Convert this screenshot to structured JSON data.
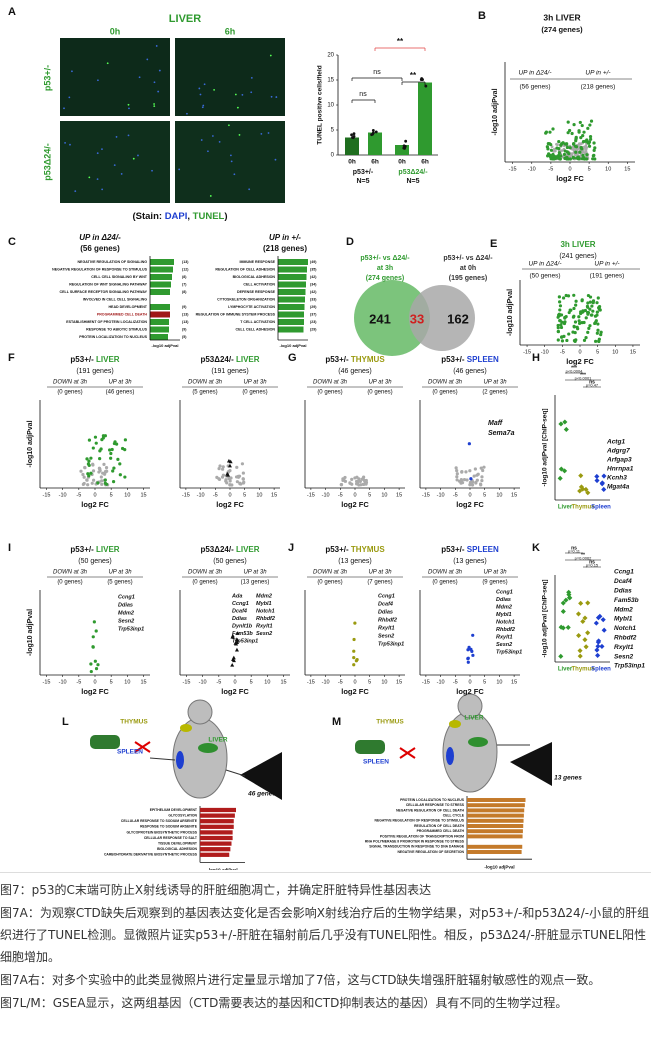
{
  "A": {
    "letter": "A",
    "title": "LIVER",
    "times": [
      "0h",
      "6h"
    ],
    "rows": [
      "p53+/-",
      "p53Δ24/-"
    ],
    "stain": [
      "(Stain: ",
      "DAPI",
      ", ",
      "TUNEL",
      ")"
    ],
    "bar_chart": {
      "ylabel": "TUNEL positive cells/field",
      "ylim": [
        0,
        20
      ],
      "yticks": [
        0,
        5,
        10,
        15,
        20
      ],
      "values": [
        3.5,
        4.5,
        2,
        14.5
      ],
      "color": "#2f9a2f",
      "xlabels": [
        "0h",
        "6h",
        "0h",
        "6h"
      ],
      "groups": [
        "p53+/-",
        "N=5",
        "p53Δ24/-",
        "N=5"
      ],
      "sig": [
        "ns",
        "ns",
        "**",
        "**"
      ]
    }
  },
  "B": {
    "letter": "B",
    "title": "3h LIVER",
    "subtitle": "(274 genes)",
    "left": "UP in Δ24/-",
    "left_n": "(56 genes)",
    "right": "UP in +/-",
    "right_n": "(218 genes)",
    "ylabel": "-log10 adjPval",
    "xlabel": "log2 FC",
    "xlim": [
      -17,
      17
    ],
    "xticks": [
      -15,
      -10,
      -5,
      0,
      5,
      10,
      15
    ]
  },
  "C": {
    "letter": "C",
    "xlabel": "-log10 adjPval",
    "xlim": [
      0,
      3
    ],
    "lists": [
      {
        "title": "UP in Δ24/-",
        "subtitle": "(56 genes)",
        "color": "#2f9a2f",
        "highlight_color": "#a01818",
        "terms": [
          "NEGATIVE REGULATION OF SIGNALING",
          "NEGATIVE REGULATION OF RESPONSE TO STIMULUS",
          "CELL CELL SIGNALING BY WNT",
          "REGULATION OF WNT SIGNALING PATHWAY",
          "CELL SURFACE RECEPTOR SIGNALING PATHWAY",
          "INVOLVED IN CELL CELL SIGNALING",
          "HEAD DEVELOPMENT",
          "PROGRAMMED CELL DEATH",
          "ESTABLISHMENT OF PROTEIN LOCALIZATION",
          "RESPONSE TO ABIOTIC STIMULUS",
          "PROTEIN LOCALIZATION TO NUCLEUS"
        ],
        "counts": [
          "(13)",
          "(12)",
          "(8)",
          "(7)",
          "(8)",
          null,
          "(9)",
          "(13)",
          "(13)",
          "(9)",
          "(5)"
        ],
        "values": [
          2.4,
          2.3,
          2.2,
          2.1,
          2.0,
          null,
          2.0,
          2.0,
          1.9,
          1.9,
          1.8
        ],
        "highlight": 7
      },
      {
        "title": "UP in +/-",
        "subtitle": "(218 genes)",
        "color": "#2f9a2f",
        "terms": [
          "IMMUNE RESPONSE",
          "REGULATION OF CELL ADHESION",
          "BIOLOGICAL ADHESION",
          "CELL ACTIVATION",
          "DEFENSE RESPONSE",
          "CYTOSKELETON ORGANIZATION",
          "LYMPHOCYTE ACTIVATION",
          "REGULATION OF IMMUNE SYSTEM PROCESS",
          "T CELL ACTIVATION",
          "CELL CELL ADHESION"
        ],
        "counts": [
          "(49)",
          "(35)",
          "(42)",
          "(34)",
          "(42)",
          "(33)",
          "(29)",
          "(37)",
          "(23)",
          "(29)"
        ],
        "values": [
          3.0,
          2.9,
          2.85,
          2.8,
          2.75,
          2.7,
          2.65,
          2.6,
          2.6,
          2.55
        ]
      }
    ]
  },
  "D": {
    "letter": "D",
    "left": [
      "p53+/- vs Δ24/-",
      "at 3h",
      "(274 genes)"
    ],
    "right": [
      "p53+/- vs Δ24/-",
      "at 0h",
      "(195 genes)"
    ],
    "counts": [
      "241",
      "33",
      "162"
    ]
  },
  "E": {
    "letter": "E",
    "title": "3h LIVER",
    "subtitle": "(241 genes)",
    "left": "UP in Δ24/-",
    "left_n": "(50 genes)",
    "right": "UP in +/-",
    "right_n": "(191 genes)",
    "ylabel": "-log10 adjPval",
    "xlabel": "log2 FC",
    "xlim": [
      -17,
      17
    ],
    "xticks": [
      -15,
      -10,
      -5,
      0,
      5,
      10,
      15
    ]
  },
  "F": {
    "letter": "F",
    "ylabel": "-log10 adjPval",
    "xlabel": "log2 FC",
    "xlim": [
      -17,
      17
    ],
    "xticks": [
      -15,
      -10,
      -5,
      0,
      5,
      10,
      15
    ],
    "plots": [
      {
        "title": [
          "p53+/- ",
          "LIVER"
        ],
        "subtitle": "(191 genes)",
        "down": "DOWN at 3h",
        "up": "UP at 3h",
        "down_n": "(0 genes)",
        "up_n": "(46 genes)"
      },
      {
        "title": [
          "p53Δ24/- ",
          "LIVER"
        ],
        "subtitle": "(191 genes)",
        "down": "DOWN at 3h",
        "up": "UP at 3h",
        "down_n": "(5 genes)",
        "up_n": "(0 genes)"
      }
    ]
  },
  "G": {
    "letter": "G",
    "xlabel": "log2 FC",
    "xlim": [
      -17,
      17
    ],
    "xticks": [
      -15,
      -10,
      -5,
      0,
      5,
      10,
      15
    ],
    "plots": [
      {
        "title": [
          "p53+/- ",
          "THYMUS"
        ],
        "subtitle": "(46 genes)",
        "down": "DOWN at 3h",
        "up": "UP at 3h",
        "down_n": "(0 genes)",
        "up_n": "(0 genes)"
      },
      {
        "title": [
          "p53+/- ",
          "SPLEEN"
        ],
        "subtitle": "(46 genes)",
        "down": "DOWN at 3h",
        "up": "UP at 3h",
        "down_n": "(0 genes)",
        "up_n": "(2 genes)",
        "genes": [
          "Maff",
          "Sema7a"
        ]
      }
    ]
  },
  "H": {
    "letter": "H",
    "ylabel": "-log10 adjPval [ChIP-seq]",
    "xlabels": [
      "Liver",
      "Thymus",
      "Spleen"
    ],
    "sig": [
      "***",
      "p<0.0004",
      "***",
      "p<0.0001",
      "ns",
      "p=0.47"
    ],
    "genes": [
      "Actg1",
      "Adgrg7",
      "Arfgap3",
      "Hnrnpa1",
      "Kcnh3",
      "Mgat4a"
    ]
  },
  "I": {
    "letter": "I",
    "ylabel": "-log10 adjPval",
    "xlabel": "log2 FC",
    "xlim": [
      -17,
      17
    ],
    "xticks": [
      -15,
      -10,
      -5,
      0,
      5,
      10,
      15
    ],
    "plots": [
      {
        "title": [
          "p53+/- ",
          "LIVER"
        ],
        "subtitle": "(50 genes)",
        "down": "DOWN at 3h",
        "up": "UP at 3h",
        "down_n": "(0 genes)",
        "up_n": "(5 genes)",
        "genes": [
          "Ccng1",
          "Ddias",
          "Mdm2",
          "Sesn2",
          "Trp53inp1"
        ]
      },
      {
        "title": [
          "p53Δ24/- ",
          "LIVER"
        ],
        "subtitle": "(50 genes)",
        "down": "DOWN at 3h",
        "up": "UP at 3h",
        "down_n": "(0 genes)",
        "up_n": "(13 genes)",
        "genes": [
          "Ada",
          "Ccng1",
          "Dcaf4",
          "Ddias",
          "Dynlt1b",
          "Fam53b",
          "Trp53inp1",
          "Mdm2",
          "Mybl1",
          "Notch1",
          "Rhbdf2",
          "Rxylt1",
          "Sesn2"
        ]
      }
    ]
  },
  "J": {
    "letter": "J",
    "xlabel": "log2 FC",
    "xlim": [
      -17,
      17
    ],
    "xticks": [
      -15,
      -10,
      -5,
      0,
      5,
      10,
      15
    ],
    "plots": [
      {
        "title": [
          "p53+/- ",
          "THYMUS"
        ],
        "subtitle": "(13 genes)",
        "down": "DOWN at 3h",
        "up": "UP at 3h",
        "down_n": "(0 genes)",
        "up_n": "(7 genes)",
        "genes": [
          "Ccng1",
          "Dcaf4",
          "Ddias",
          "Rhbdf2",
          "Rxylt1",
          "Sesn2",
          "Trp53inp1"
        ]
      },
      {
        "title": [
          "p53+/- ",
          "SPLEEN"
        ],
        "subtitle": "(13 genes)",
        "down": "DOWN at 3h",
        "up": "UP at 3h",
        "down_n": "(0 genes)",
        "up_n": "(9 genes)",
        "genes": [
          "Ccng1",
          "Ddias",
          "Mdm2",
          "Mybl1",
          "Notch1",
          "Rhbdf2",
          "Rxylt1",
          "Sesn2",
          "Trp53inp1"
        ]
      }
    ]
  },
  "K": {
    "letter": "K",
    "ylabel": "-log10 adjPval [ChIP-seq]",
    "xlabels": [
      "Liver",
      "Thymus",
      "Spleen"
    ],
    "sig": [
      "ns",
      "p=0.11",
      "**",
      "p=0.0062",
      "ns",
      "p=0.15"
    ],
    "genes": [
      "Ccng1",
      "Dcaf4",
      "Ddias",
      "Fam53b",
      "Mdm2",
      "Mybl1",
      "Notch1",
      "Rhbdf2",
      "Rxylt1",
      "Sesn2",
      "Trp53inp1"
    ]
  },
  "L": {
    "letter": "L",
    "labels": [
      "THYMUS",
      "LIVER",
      "SPLEEN"
    ],
    "genes": "46 genes",
    "xlabel": "-log10 adjPval",
    "xlim": [
      0,
      2
    ],
    "color": "#b01c1c",
    "terms": [
      "EPITHELIUM DEVELOPMENT",
      "GLYCOSYLATION",
      "CELLULAR RESPONSE TO SODIUM ARSENITE",
      "RESPONSE TO SODIUM ARSENITE",
      "GLYCOPROTEIN BIOSYNTHETIC PROCESS",
      "CELLULAR RESPONSE TO SALT",
      "TISSUE DEVELOPMENT",
      "BIOLOGICAL ADHESION",
      "CARBOHYDRATE DERIVATIVE BIOSYNTHETIC PROCESS"
    ],
    "values": [
      1.6,
      1.55,
      1.5,
      1.5,
      1.45,
      1.45,
      1.4,
      1.35,
      1.3
    ]
  },
  "M": {
    "letter": "M",
    "labels": [
      "THYMUS",
      "LIVER",
      "SPLEEN"
    ],
    "genes": "13 genes",
    "xlabel": "-log10 adjPval",
    "xlim": [
      0,
      2
    ],
    "color": "#c47a2a",
    "terms": [
      "PROTEIN LOCALIZATION TO NUCLEUS",
      "CELLULAR RESPONSE TO STRESS",
      "NEGATIVE REGULATION OF CELL DEATH",
      "CELL CYCLE",
      "NEGATIVE REGULATION OF RESPONSE TO STIMULUS",
      "REGULATION OF CELL DEATH",
      "PROGRAMMED CELL DEATH",
      "POSITIVE REGULATION OF TRANSCRIPTION FROM",
      "RNA POLYMERASE II PROMOTER IN RESPONSE TO STRESS",
      "SIGNAL TRANSDUCTION IN RESPONSE TO DNA DAMAGE",
      "NEGATIVE REGULATION OF SECRETION"
    ],
    "values": [
      1.8,
      1.78,
      1.76,
      1.75,
      1.74,
      1.73,
      1.72,
      1.71,
      null,
      1.7,
      1.68
    ]
  },
  "caption": [
    "图7：p53的C末端可防止X射线诱导的肝脏细胞凋亡，并确定肝脏特异性基因表达",
    "图7A：为观察CTD缺失后观察到的基因表达变化是否会影响X射线治疗后的生物学结果，对p53+/-和p53Δ24/-小鼠的肝组织进行了TUNEL检测。显微照片证实p53+/-肝脏在辐射前后几乎没有TUNEL阳性。相反，p53Δ24/-肝脏显示TUNEL阳性细胞增加。",
    "图7A右：对多个实验中的此类显微照片进行定量显示增加了7倍，这与CTD缺失增强肝脏辐射敏感性的观点一致。",
    "图7L/M：GSEA显示，这两组基因（CTD需要表达的基因和CTD抑制表达的基因）具有不同的生物学过程。"
  ]
}
